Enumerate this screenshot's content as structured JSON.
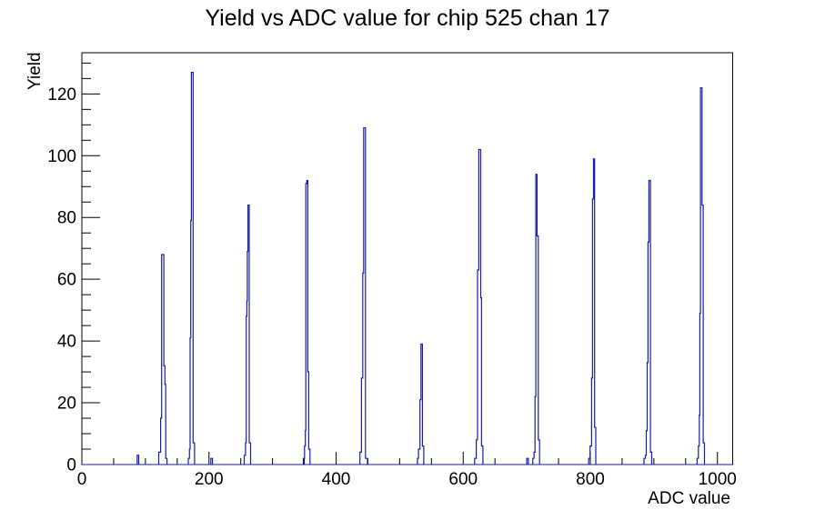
{
  "chart_data": {
    "type": "line",
    "title": "Yield vs ADC value for chip 525 chan 17",
    "xlabel": "ADC value",
    "ylabel": "Yield",
    "xlim": [
      0,
      1024
    ],
    "ylim": [
      0,
      133.35
    ],
    "x_major_ticks": [
      0,
      200,
      400,
      600,
      800,
      1000
    ],
    "x_tick_labels": [
      "0",
      "200",
      "400",
      "600",
      "800",
      "1000"
    ],
    "x_minor_step": 50,
    "y_major_ticks": [
      0,
      20,
      40,
      60,
      80,
      100,
      120
    ],
    "y_tick_labels": [
      "0",
      "20",
      "40",
      "60",
      "80",
      "100",
      "120"
    ],
    "y_minor_step": 5,
    "grid": false,
    "legend": false,
    "line_color": "#1b1ba7",
    "frame_color": "#000000",
    "background": "#ffffff",
    "peak_summary": {
      "adc_centers": [
        127,
        173,
        262,
        353,
        445,
        534,
        626,
        715,
        805,
        893,
        974
      ],
      "peak_heights": [
        68,
        127,
        84,
        92,
        109,
        39,
        102,
        94,
        99,
        92,
        122
      ]
    },
    "segments": [
      [
        [
          87,
          3
        ],
        [
          89.5,
          0
        ]
      ],
      [
        [
          121,
          4
        ],
        [
          124,
          15
        ],
        [
          125.5,
          68
        ],
        [
          129,
          32
        ],
        [
          130.7,
          26
        ],
        [
          132,
          2
        ],
        [
          134,
          0
        ]
      ],
      [
        [
          167.5,
          2
        ],
        [
          169.3,
          5
        ],
        [
          170.3,
          41
        ],
        [
          171.3,
          79
        ],
        [
          172.3,
          127
        ],
        [
          175,
          7
        ],
        [
          177.3,
          0
        ]
      ],
      [
        [
          203,
          2
        ],
        [
          205.5,
          0
        ]
      ],
      [
        [
          255.5,
          3
        ],
        [
          257.5,
          7
        ],
        [
          258.6,
          48
        ],
        [
          259.6,
          53
        ],
        [
          260.3,
          69
        ],
        [
          261.3,
          84
        ],
        [
          263.4,
          7
        ],
        [
          265.5,
          0
        ]
      ],
      [
        [
          348.5,
          2
        ],
        [
          350.3,
          6
        ],
        [
          351.7,
          11
        ],
        [
          352.3,
          91
        ],
        [
          353.9,
          92
        ],
        [
          355.5,
          30
        ],
        [
          357,
          5
        ],
        [
          359,
          0
        ]
      ],
      [
        [
          437.5,
          4
        ],
        [
          440,
          28
        ],
        [
          442,
          62
        ],
        [
          443.4,
          109
        ],
        [
          446.3,
          2
        ],
        [
          449.4,
          0
        ]
      ],
      [
        [
          528,
          2
        ],
        [
          529.7,
          5
        ],
        [
          532,
          21
        ],
        [
          533.5,
          39
        ],
        [
          535.9,
          6
        ],
        [
          538,
          0
        ]
      ],
      [
        [
          618,
          2
        ],
        [
          620.6,
          8
        ],
        [
          622.6,
          63
        ],
        [
          624.5,
          102
        ],
        [
          627.5,
          54
        ],
        [
          628.8,
          6
        ],
        [
          631,
          0
        ]
      ],
      [
        [
          700,
          2
        ],
        [
          702.5,
          0
        ]
      ],
      [
        [
          709.5,
          2
        ],
        [
          711.5,
          4
        ],
        [
          713,
          22
        ],
        [
          714.3,
          94
        ],
        [
          716.2,
          74
        ],
        [
          718.2,
          8
        ],
        [
          720.2,
          0
        ]
      ],
      [
        [
          797.5,
          2
        ],
        [
          799.6,
          6
        ],
        [
          802,
          28
        ],
        [
          803.5,
          86
        ],
        [
          805,
          99
        ],
        [
          806.8,
          12
        ],
        [
          808.6,
          0
        ]
      ],
      [
        [
          884.5,
          2
        ],
        [
          886.6,
          3
        ],
        [
          888,
          11
        ],
        [
          889.5,
          33
        ],
        [
          890.8,
          72
        ],
        [
          892.2,
          92
        ],
        [
          894.6,
          4
        ],
        [
          896.6,
          0
        ]
      ],
      [
        [
          968,
          2
        ],
        [
          970,
          6
        ],
        [
          971.5,
          16
        ],
        [
          972.3,
          49
        ],
        [
          973.3,
          122
        ],
        [
          975.7,
          84
        ],
        [
          977.6,
          7
        ],
        [
          979.6,
          0
        ]
      ]
    ]
  }
}
